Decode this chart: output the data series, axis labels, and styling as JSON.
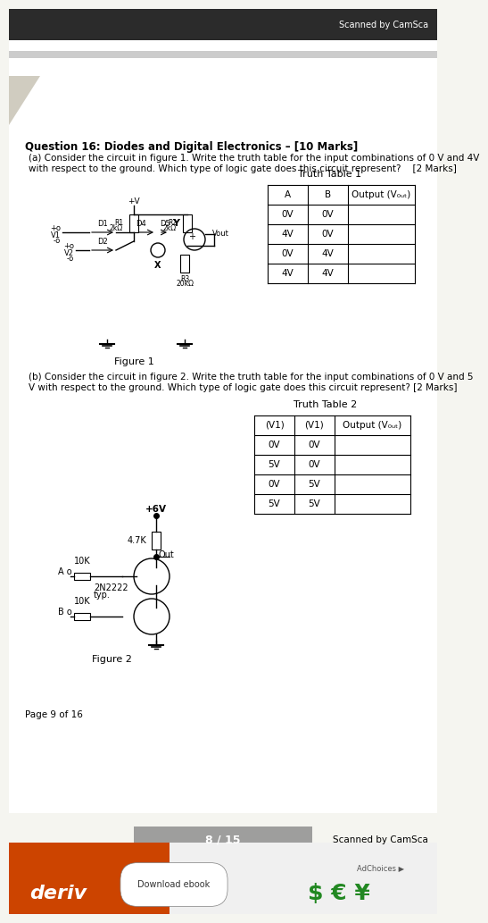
{
  "bg_color": "#f5f5f0",
  "page_bg": "#ffffff",
  "header_bar_color": "#2b2b2b",
  "header_text": "Scanned by CamSca",
  "title": "Question 16: Diodes and Digital Electronics – [10 Marks]",
  "part_a_text": "(a) Consider the circuit in figure 1. Write the truth table for the input combinations of 0 V and 4V\n    with respect to the ground. Which type of logic gate does this circuit represent?    [2 Marks]",
  "truth_table1_title": "Truth Table 1",
  "truth_table1_headers": [
    "A",
    "B",
    "Output (V₀ᵤₜ)"
  ],
  "truth_table1_rows": [
    [
      "0V",
      "0V",
      ""
    ],
    [
      "4V",
      "0V",
      ""
    ],
    [
      "0V",
      "4V",
      ""
    ],
    [
      "4V",
      "4V",
      ""
    ]
  ],
  "figure1_label": "Figure 1",
  "part_b_text": "(b) Consider the circuit in figure 2. Write the truth table for the input combinations of 0 V and 5\n    V with respect to the ground. Which type of logic gate does this circuit represent? [2 Marks]",
  "truth_table2_title": "Truth Table 2",
  "truth_table2_headers": [
    "(V1)",
    "(V1)",
    "Output (V₀ᵤₜ)"
  ],
  "truth_table2_rows": [
    [
      "0V",
      "0V",
      ""
    ],
    [
      "5V",
      "0V",
      ""
    ],
    [
      "0V",
      "5V",
      ""
    ],
    [
      "5V",
      "5V",
      ""
    ]
  ],
  "figure2_label": "Figure 2",
  "footer_page": "Page 9 of 16",
  "footer_center": "8 / 15",
  "footer_right": "Scanned by CamSca",
  "ad_text": "deriv",
  "ad_subtext": "Download ebook",
  "ad_bg": "#ff6600"
}
